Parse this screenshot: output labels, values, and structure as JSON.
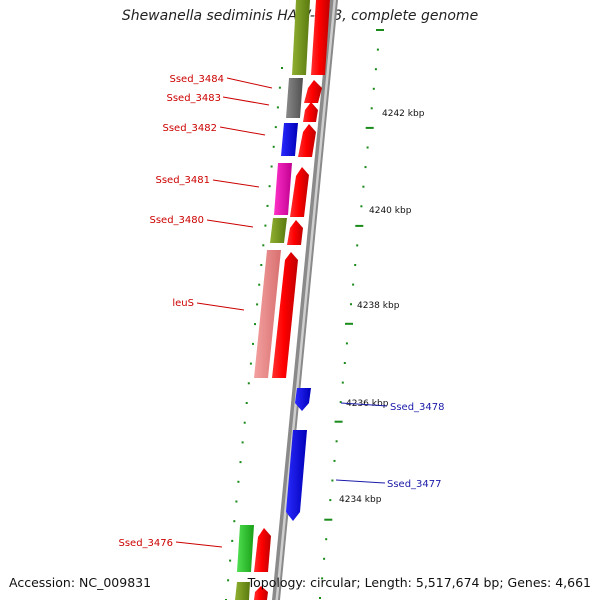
{
  "title": "Shewanella sediminis HAW-EB3, complete genome",
  "accession": "Accession: NC_009831",
  "summary": "Topology: circular; Length: 5,517,674 bp; Genes: 4,661",
  "colors": {
    "label_forward": "#cc0000",
    "label_reverse": "#1a1aa8",
    "tick": "#1a8a1a",
    "backbone": "#888888"
  },
  "ticks": [
    {
      "label": "4242 kbp"
    },
    {
      "label": "4240 kbp"
    },
    {
      "label": "4238 kbp"
    },
    {
      "label": "4236 kbp"
    },
    {
      "label": "4234 kbp"
    }
  ],
  "gene_labels": [
    {
      "label": "Ssed_3484",
      "strand": "forward"
    },
    {
      "label": "Ssed_3483",
      "strand": "forward"
    },
    {
      "label": "Ssed_3482",
      "strand": "forward"
    },
    {
      "label": "Ssed_3481",
      "strand": "forward"
    },
    {
      "label": "Ssed_3480",
      "strand": "forward"
    },
    {
      "label": "leuS",
      "strand": "forward"
    },
    {
      "label": "Ssed_3478",
      "strand": "reverse"
    },
    {
      "label": "Ssed_3477",
      "strand": "reverse"
    },
    {
      "label": "Ssed_3476",
      "strand": "forward"
    }
  ]
}
